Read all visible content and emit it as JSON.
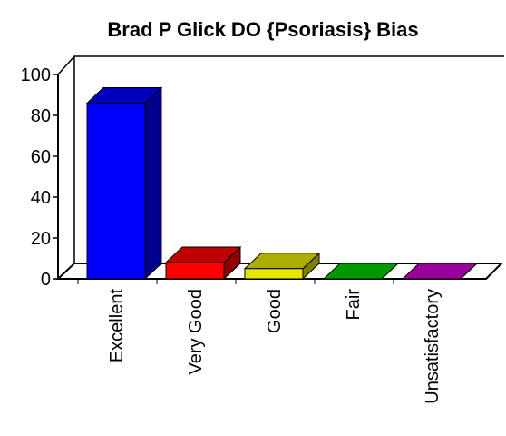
{
  "chart_data": {
    "type": "bar3d",
    "title": "Brad P Glick DO {Psoriasis} Bias",
    "categories": [
      "Excellent",
      "Very Good",
      "Good",
      "Fair",
      "Unsatisfactory"
    ],
    "values": [
      86,
      8,
      5,
      0,
      0
    ],
    "colors": [
      "#0000ff",
      "#ff0000",
      "#e6e600",
      "#00cc00",
      "#cc00cc"
    ],
    "ylim": [
      0,
      100
    ],
    "yticks": [
      0,
      20,
      40,
      60,
      80,
      100
    ]
  }
}
